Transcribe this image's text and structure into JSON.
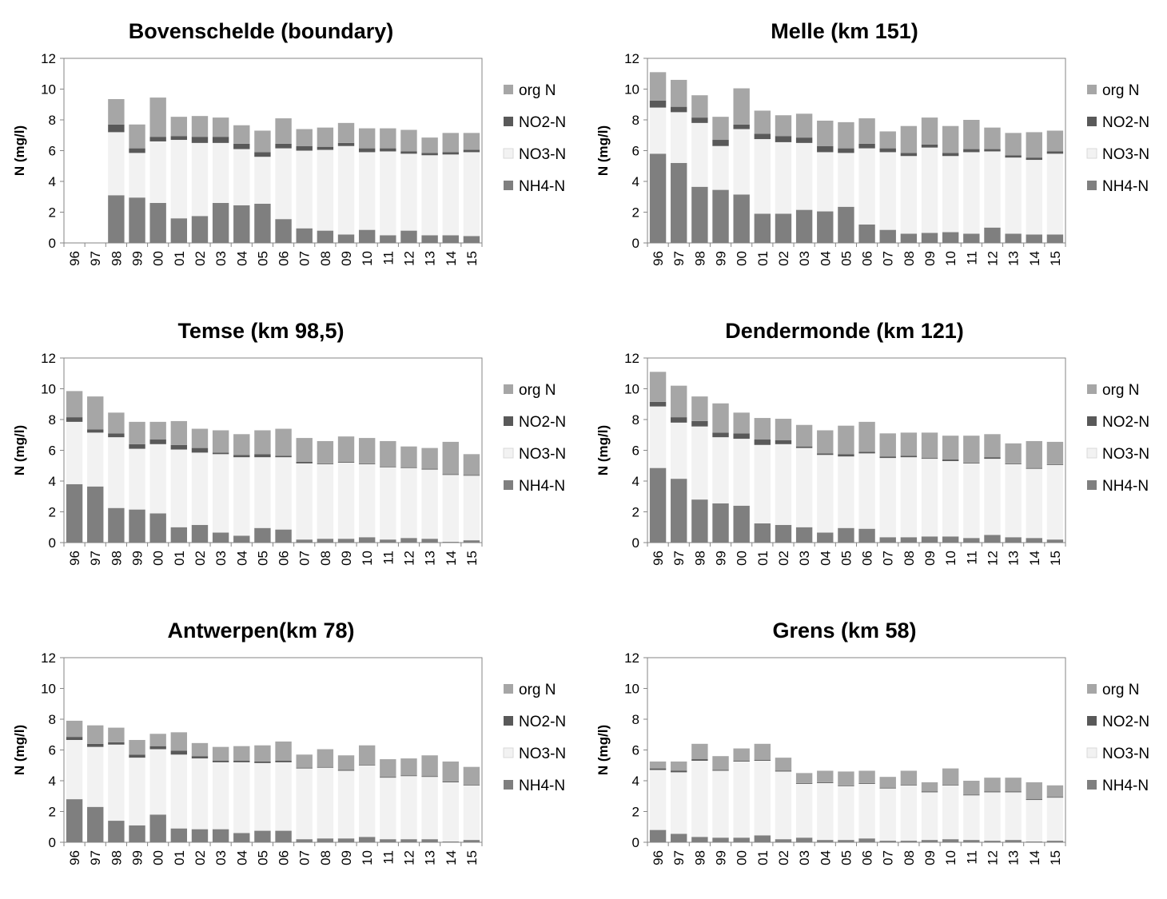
{
  "chart_data": [
    {
      "type": "bar",
      "stacked": true,
      "title": "Bovenschelde (boundary)",
      "ylabel": "N (mg/l)",
      "ylim": [
        0,
        12
      ],
      "yticks": [
        "0",
        "2",
        "4",
        "6",
        "8",
        "10",
        "12"
      ],
      "categories": [
        "96",
        "97",
        "98",
        "99",
        "00",
        "01",
        "02",
        "03",
        "04",
        "05",
        "06",
        "07",
        "08",
        "09",
        "10",
        "11",
        "12",
        "13",
        "14",
        "15"
      ],
      "legend": [
        "org N",
        "NO2-N",
        "NO3-N",
        "NH4-N"
      ],
      "legend_position": "right",
      "series": [
        {
          "name": "NH4-N",
          "values": [
            0,
            0,
            3.1,
            2.95,
            2.6,
            1.6,
            1.75,
            2.6,
            2.45,
            2.55,
            1.55,
            0.95,
            0.8,
            0.55,
            0.85,
            0.5,
            0.8,
            0.5,
            0.5,
            0.45
          ]
        },
        {
          "name": "NO3-N",
          "values": [
            0,
            0,
            4.1,
            2.9,
            4.0,
            5.1,
            4.75,
            3.9,
            3.65,
            3.05,
            4.6,
            5.05,
            5.25,
            5.75,
            5.05,
            5.45,
            5.0,
            5.2,
            5.25,
            5.45
          ]
        },
        {
          "name": "NO2-N",
          "values": [
            0,
            0,
            0.5,
            0.3,
            0.3,
            0.25,
            0.4,
            0.4,
            0.35,
            0.3,
            0.3,
            0.3,
            0.2,
            0.2,
            0.25,
            0.2,
            0.15,
            0.15,
            0.15,
            0.15
          ]
        },
        {
          "name": "org N",
          "values": [
            0,
            0,
            1.65,
            1.55,
            2.55,
            1.25,
            1.35,
            1.25,
            1.2,
            1.4,
            1.65,
            1.1,
            1.25,
            1.3,
            1.3,
            1.3,
            1.4,
            1.0,
            1.25,
            1.1
          ]
        }
      ]
    },
    {
      "type": "bar",
      "stacked": true,
      "title": "Melle (km 151)",
      "ylabel": "N (mg/l)",
      "ylim": [
        0,
        12
      ],
      "yticks": [
        "0",
        "2",
        "4",
        "6",
        "8",
        "10",
        "12"
      ],
      "categories": [
        "96",
        "97",
        "98",
        "99",
        "00",
        "01",
        "02",
        "03",
        "04",
        "05",
        "06",
        "07",
        "08",
        "09",
        "10",
        "11",
        "12",
        "13",
        "14",
        "15"
      ],
      "legend": [
        "org N",
        "NO2-N",
        "NO3-N",
        "NH4-N"
      ],
      "legend_position": "right",
      "series": [
        {
          "name": "NH4-N",
          "values": [
            5.8,
            5.2,
            3.65,
            3.45,
            3.15,
            1.9,
            1.9,
            2.15,
            2.05,
            2.35,
            1.2,
            0.85,
            0.6,
            0.65,
            0.7,
            0.6,
            1.0,
            0.6,
            0.55,
            0.55
          ]
        },
        {
          "name": "NO3-N",
          "values": [
            3.0,
            3.3,
            4.15,
            2.85,
            4.25,
            4.85,
            4.65,
            4.35,
            3.85,
            3.5,
            4.95,
            5.05,
            5.05,
            5.55,
            4.95,
            5.3,
            4.95,
            4.95,
            4.85,
            5.25
          ]
        },
        {
          "name": "NO2-N",
          "values": [
            0.45,
            0.35,
            0.35,
            0.4,
            0.3,
            0.35,
            0.4,
            0.35,
            0.4,
            0.3,
            0.3,
            0.25,
            0.2,
            0.2,
            0.2,
            0.2,
            0.15,
            0.15,
            0.15,
            0.15
          ]
        },
        {
          "name": "org N",
          "values": [
            1.85,
            1.75,
            1.45,
            1.5,
            2.35,
            1.5,
            1.35,
            1.55,
            1.65,
            1.7,
            1.65,
            1.1,
            1.75,
            1.75,
            1.75,
            1.9,
            1.4,
            1.45,
            1.65,
            1.35
          ]
        }
      ]
    },
    {
      "type": "bar",
      "stacked": true,
      "title": "Temse (km 98,5)",
      "ylabel": "N (mg/l)",
      "ylim": [
        0,
        12
      ],
      "yticks": [
        "0",
        "2",
        "4",
        "6",
        "8",
        "10",
        "12"
      ],
      "categories": [
        "96",
        "97",
        "98",
        "99",
        "00",
        "01",
        "02",
        "03",
        "04",
        "05",
        "06",
        "07",
        "08",
        "09",
        "10",
        "11",
        "12",
        "13",
        "14",
        "15"
      ],
      "legend": [
        "org N",
        "NO2-N",
        "NO3-N",
        "NH4-N"
      ],
      "legend_position": "right",
      "series": [
        {
          "name": "NH4-N",
          "values": [
            3.8,
            3.65,
            2.25,
            2.15,
            1.9,
            1.0,
            1.15,
            0.65,
            0.45,
            0.95,
            0.85,
            0.2,
            0.25,
            0.25,
            0.35,
            0.2,
            0.3,
            0.25,
            0.05,
            0.15
          ]
        },
        {
          "name": "NO3-N",
          "values": [
            4.05,
            3.5,
            4.6,
            3.95,
            4.5,
            5.05,
            4.7,
            5.1,
            5.1,
            4.6,
            4.7,
            4.95,
            4.85,
            4.95,
            4.75,
            4.7,
            4.55,
            4.5,
            4.35,
            4.2
          ]
        },
        {
          "name": "NO2-N",
          "values": [
            0.3,
            0.2,
            0.25,
            0.3,
            0.3,
            0.3,
            0.3,
            0.1,
            0.15,
            0.2,
            0.1,
            0.1,
            0.05,
            0.05,
            0.05,
            0.05,
            0.05,
            0.05,
            0.05,
            0.05
          ]
        },
        {
          "name": "org N",
          "values": [
            1.7,
            2.15,
            1.35,
            1.45,
            1.15,
            1.55,
            1.25,
            1.45,
            1.35,
            1.55,
            1.75,
            1.55,
            1.45,
            1.65,
            1.65,
            1.65,
            1.35,
            1.35,
            2.1,
            1.35
          ]
        }
      ]
    },
    {
      "type": "bar",
      "stacked": true,
      "title": "Dendermonde (km 121)",
      "ylabel": "N (mg/l)",
      "ylim": [
        0,
        12
      ],
      "yticks": [
        "0",
        "2",
        "4",
        "6",
        "8",
        "10",
        "12"
      ],
      "categories": [
        "96",
        "97",
        "98",
        "99",
        "00",
        "01",
        "02",
        "03",
        "04",
        "05",
        "06",
        "07",
        "08",
        "09",
        "10",
        "11",
        "12",
        "13",
        "14",
        "15"
      ],
      "legend": [
        "org N",
        "NO2-N",
        "NO3-N",
        "NH4-N"
      ],
      "legend_position": "right",
      "series": [
        {
          "name": "NH4-N",
          "values": [
            4.85,
            4.15,
            2.8,
            2.55,
            2.4,
            1.25,
            1.15,
            1.0,
            0.65,
            0.95,
            0.9,
            0.35,
            0.35,
            0.4,
            0.4,
            0.3,
            0.5,
            0.35,
            0.3,
            0.2
          ]
        },
        {
          "name": "NO3-N",
          "values": [
            4.0,
            3.65,
            4.75,
            4.3,
            4.35,
            5.1,
            5.25,
            5.15,
            5.05,
            4.65,
            4.9,
            5.15,
            5.2,
            5.05,
            4.9,
            4.85,
            4.95,
            4.75,
            4.5,
            4.85
          ]
        },
        {
          "name": "NO2-N",
          "values": [
            0.3,
            0.35,
            0.35,
            0.3,
            0.35,
            0.35,
            0.25,
            0.1,
            0.1,
            0.15,
            0.1,
            0.1,
            0.1,
            0.05,
            0.1,
            0.05,
            0.1,
            0.05,
            0.05,
            0.05
          ]
        },
        {
          "name": "org N",
          "values": [
            1.95,
            2.05,
            1.6,
            1.9,
            1.35,
            1.4,
            1.4,
            1.4,
            1.5,
            1.85,
            1.95,
            1.5,
            1.5,
            1.65,
            1.55,
            1.75,
            1.5,
            1.3,
            1.75,
            1.45
          ]
        }
      ]
    },
    {
      "type": "bar",
      "stacked": true,
      "title": "Antwerpen(km 78)",
      "ylabel": "N (mg/l)",
      "ylim": [
        0,
        12
      ],
      "yticks": [
        "0",
        "2",
        "4",
        "6",
        "8",
        "10",
        "12"
      ],
      "categories": [
        "96",
        "97",
        "98",
        "99",
        "00",
        "01",
        "02",
        "03",
        "04",
        "05",
        "06",
        "07",
        "08",
        "09",
        "10",
        "11",
        "12",
        "13",
        "14",
        "15"
      ],
      "legend": [
        "org N",
        "NO2-N",
        "NO3-N",
        "NH4-N"
      ],
      "legend_position": "right",
      "series": [
        {
          "name": "NH4-N",
          "values": [
            2.8,
            2.3,
            1.4,
            1.1,
            1.8,
            0.9,
            0.85,
            0.85,
            0.6,
            0.75,
            0.75,
            0.2,
            0.25,
            0.25,
            0.35,
            0.2,
            0.2,
            0.2,
            0.05,
            0.15
          ]
        },
        {
          "name": "NO3-N",
          "values": [
            3.85,
            3.9,
            4.95,
            4.4,
            4.25,
            4.8,
            4.6,
            4.35,
            4.6,
            4.4,
            4.45,
            4.6,
            4.6,
            4.4,
            4.65,
            4.0,
            4.1,
            4.05,
            3.85,
            3.55
          ]
        },
        {
          "name": "NO2-N",
          "values": [
            0.2,
            0.2,
            0.15,
            0.2,
            0.2,
            0.25,
            0.15,
            0.1,
            0.1,
            0.1,
            0.1,
            0.05,
            0.05,
            0.05,
            0.05,
            0.05,
            0.05,
            0.05,
            0.05,
            0.05
          ]
        },
        {
          "name": "org N",
          "values": [
            1.05,
            1.2,
            0.95,
            0.95,
            0.8,
            1.2,
            0.85,
            0.9,
            0.95,
            1.05,
            1.25,
            0.85,
            1.15,
            0.95,
            1.25,
            1.15,
            1.1,
            1.35,
            1.3,
            1.15
          ]
        }
      ]
    },
    {
      "type": "bar",
      "stacked": true,
      "title": "Grens (km 58)",
      "ylabel": "N (mg/l)",
      "ylim": [
        0,
        12
      ],
      "yticks": [
        "0",
        "2",
        "4",
        "6",
        "8",
        "10",
        "12"
      ],
      "categories": [
        "96",
        "97",
        "98",
        "99",
        "00",
        "01",
        "02",
        "03",
        "04",
        "05",
        "06",
        "07",
        "08",
        "09",
        "10",
        "11",
        "12",
        "13",
        "14",
        "15"
      ],
      "legend": [
        "org N",
        "NO2-N",
        "NO3-N",
        "NH4-N"
      ],
      "legend_position": "right",
      "series": [
        {
          "name": "NH4-N",
          "values": [
            0.8,
            0.55,
            0.35,
            0.3,
            0.3,
            0.45,
            0.2,
            0.3,
            0.15,
            0.15,
            0.25,
            0.1,
            0.1,
            0.15,
            0.2,
            0.15,
            0.1,
            0.15,
            0.05,
            0.1
          ]
        },
        {
          "name": "NO3-N",
          "values": [
            3.9,
            4.0,
            4.95,
            4.35,
            4.95,
            4.85,
            4.4,
            3.5,
            3.7,
            3.5,
            3.55,
            3.4,
            3.6,
            3.1,
            3.5,
            2.9,
            3.15,
            3.1,
            2.7,
            2.8
          ]
        },
        {
          "name": "NO2-N",
          "values": [
            0.1,
            0.1,
            0.1,
            0.05,
            0.05,
            0.05,
            0.05,
            0.05,
            0.05,
            0.05,
            0.05,
            0.05,
            0.05,
            0.05,
            0.05,
            0.05,
            0.05,
            0.05,
            0.05,
            0.05
          ]
        },
        {
          "name": "org N",
          "values": [
            0.45,
            0.6,
            1.0,
            0.9,
            0.8,
            1.05,
            0.85,
            0.65,
            0.75,
            0.9,
            0.8,
            0.7,
            0.9,
            0.6,
            1.05,
            0.9,
            0.9,
            0.9,
            1.1,
            0.75
          ]
        }
      ]
    }
  ],
  "colors": {
    "NH4-N": "#7f7f7f",
    "NO3-N": "#f2f2f2",
    "NO2-N": "#595959",
    "org N": "#a6a6a6",
    "plot_border": "#868686",
    "axis": "#868686"
  }
}
